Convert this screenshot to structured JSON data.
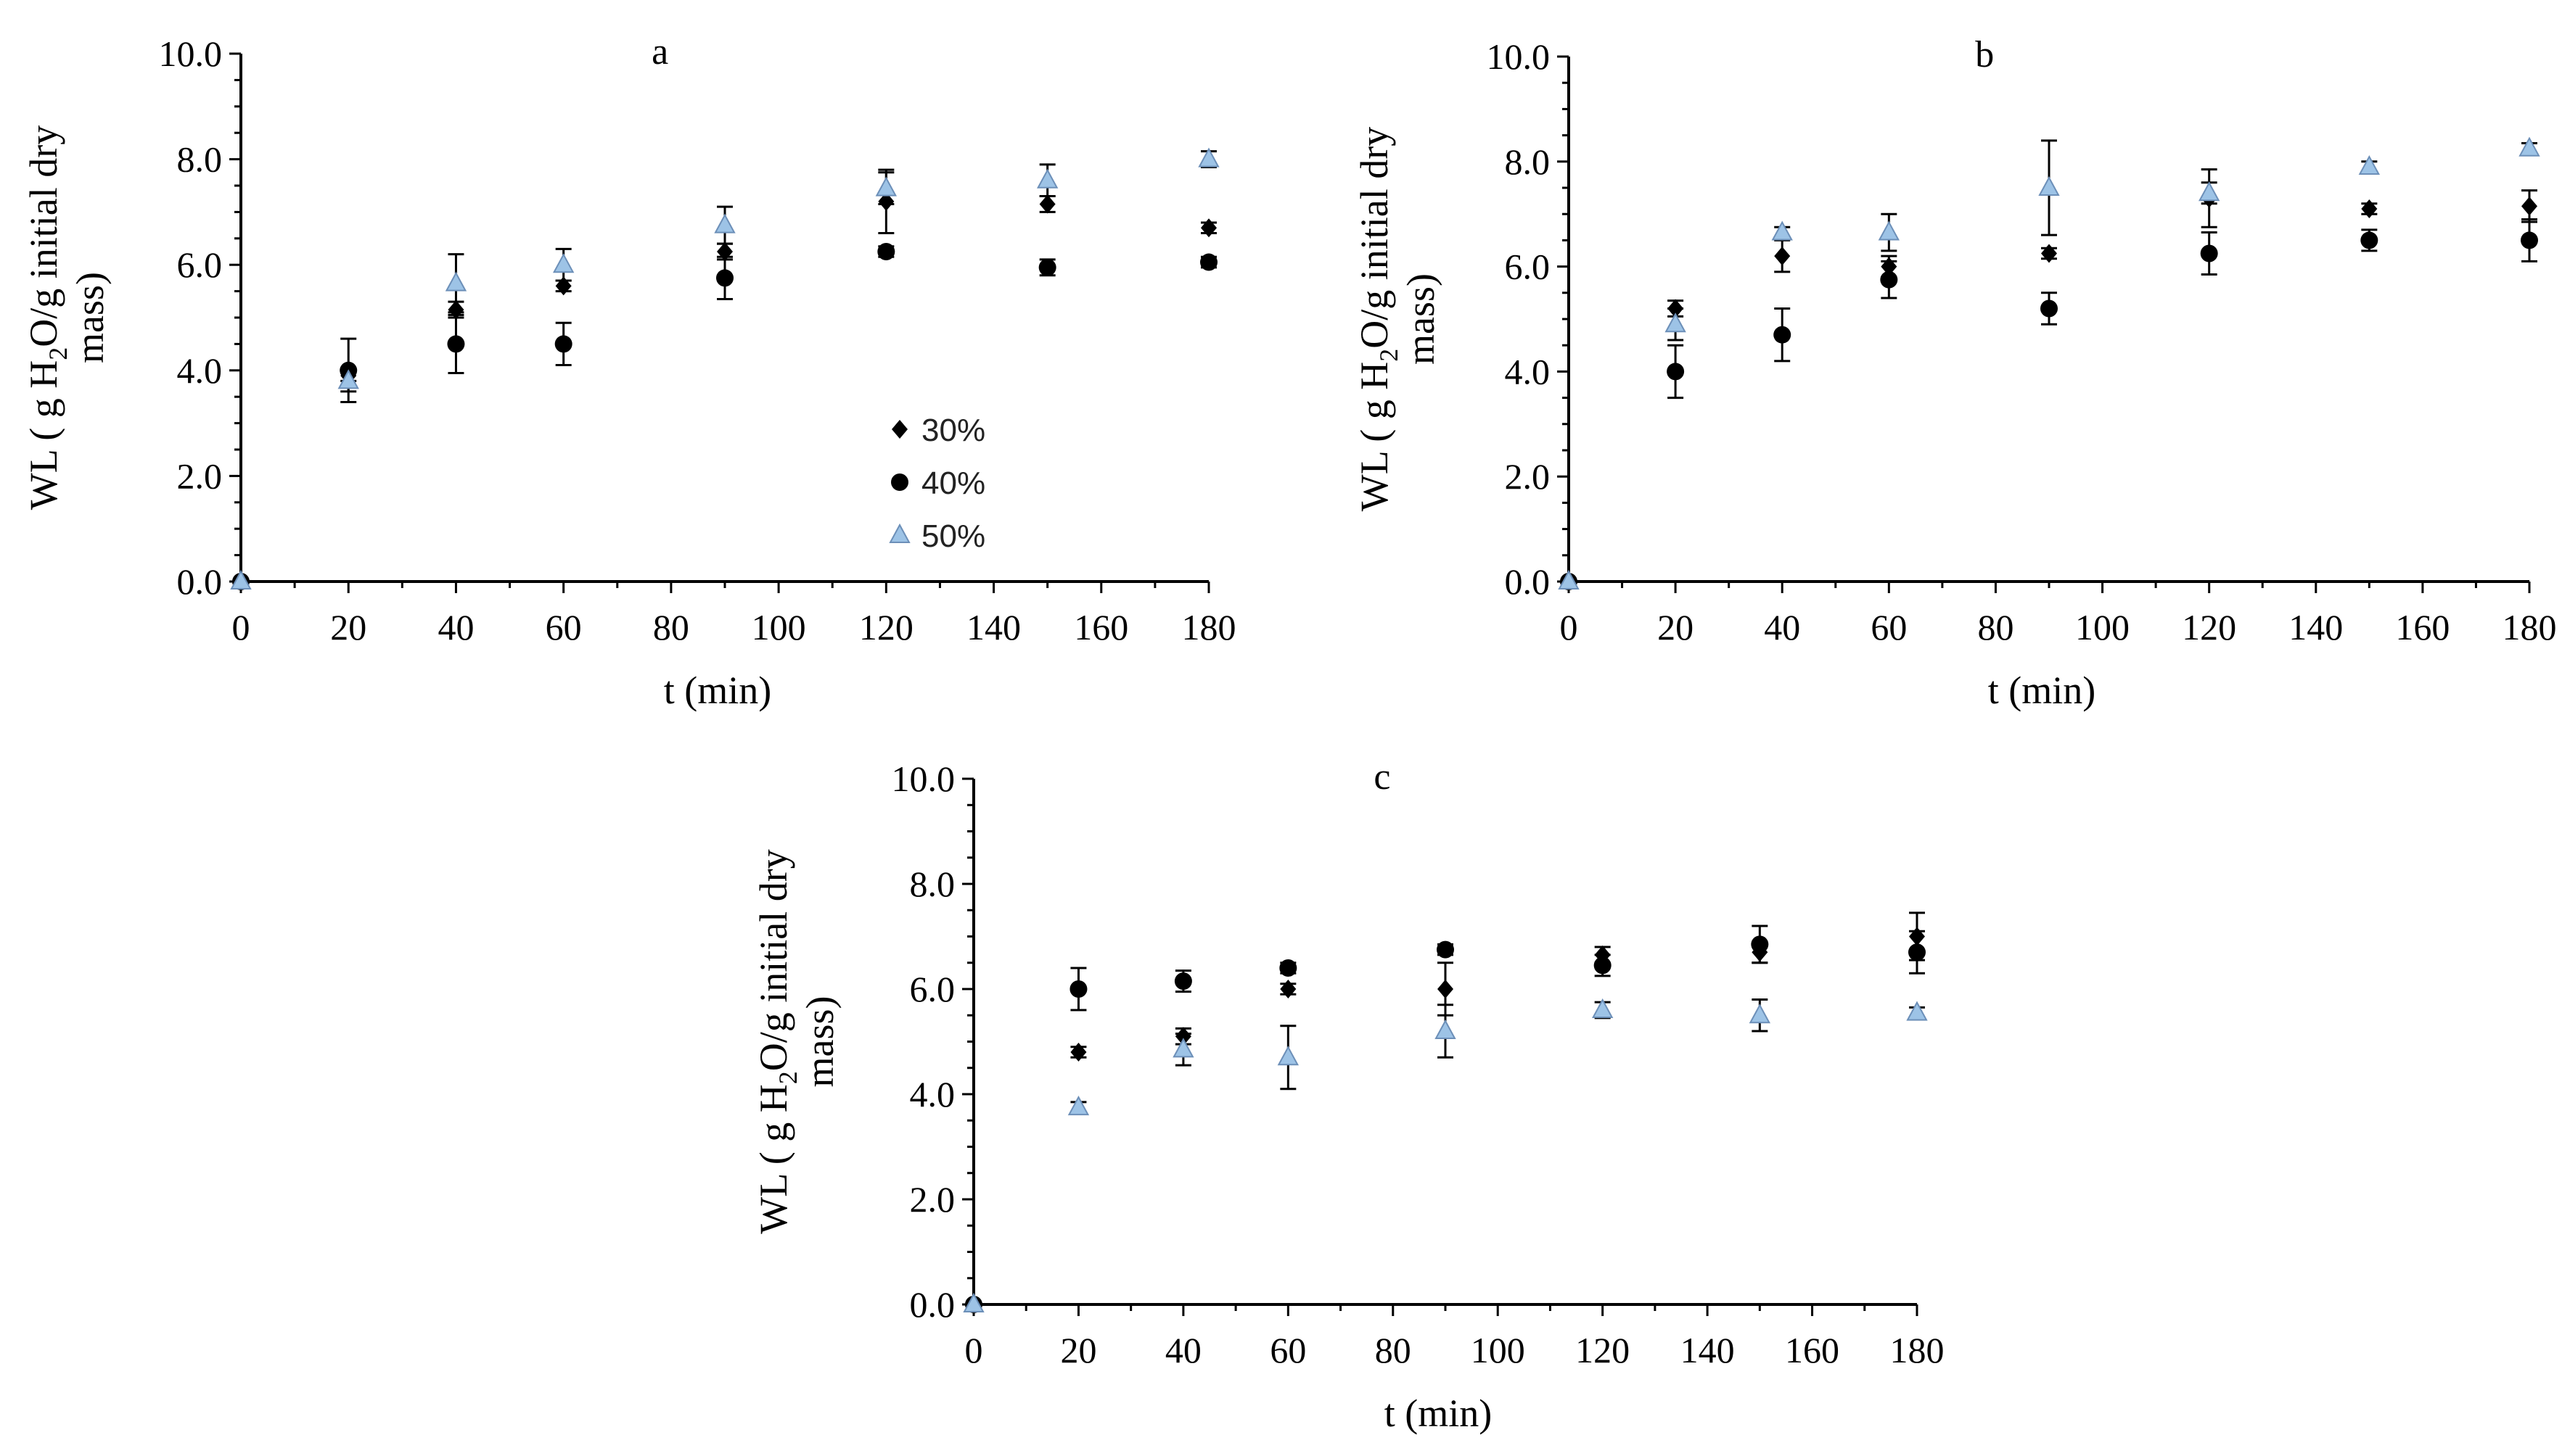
{
  "figure": {
    "xlabel": "t (min)",
    "ylabel_line1_pre": "WL ( g H",
    "ylabel_line1_sub": "2",
    "ylabel_line1_post": "O/g initial dry",
    "ylabel_line2": "mass)",
    "marker_colors": {
      "30%": "#000000",
      "40%": "#000000",
      "50%": "#9dc3e6"
    }
  },
  "legend": {
    "placement": "panel a, lower-middle",
    "items": [
      {
        "label": "30%",
        "marker": "diamond"
      },
      {
        "label": "40%",
        "marker": "circle"
      },
      {
        "label": "50%",
        "marker": "triangle"
      }
    ]
  },
  "chart_data": [
    {
      "type": "scatter",
      "title": "a",
      "xlabel": "t (min)",
      "ylabel": "WL ( g H2O/g initial dry mass)",
      "xlim": [
        0,
        180
      ],
      "ylim": [
        0,
        10
      ],
      "xticks": [
        0,
        20,
        40,
        60,
        80,
        100,
        120,
        140,
        160,
        180
      ],
      "xtick_labels": [
        "0",
        "20",
        "40",
        "60",
        "80",
        "100",
        "120",
        "140",
        "160",
        "180"
      ],
      "yticks": [
        0,
        2,
        4,
        6,
        8,
        10
      ],
      "ytick_labels": [
        "0.0",
        "2.0",
        "4.0",
        "6.0",
        "8.0",
        "10.0"
      ],
      "x": [
        0,
        20,
        40,
        60,
        90,
        120,
        150,
        180
      ],
      "series": [
        {
          "name": "30%",
          "marker": "diamond",
          "values": [
            0,
            3.9,
            5.15,
            5.6,
            6.25,
            7.2,
            7.15,
            6.7
          ],
          "errors": [
            0,
            0.1,
            0.15,
            0.1,
            0.15,
            0.6,
            0.15,
            0.1
          ]
        },
        {
          "name": "40%",
          "marker": "circle",
          "values": [
            0,
            4.0,
            4.5,
            4.5,
            5.75,
            6.25,
            5.95,
            6.05
          ],
          "errors": [
            0,
            0.6,
            0.55,
            0.4,
            0.4,
            0.1,
            0.15,
            0.1
          ]
        },
        {
          "name": "50%",
          "marker": "triangle",
          "values": [
            0,
            3.8,
            5.65,
            6.0,
            6.75,
            7.45,
            7.6,
            8.0
          ],
          "errors": [
            0,
            0.2,
            0.55,
            0.3,
            0.35,
            0.3,
            0.3,
            0.15
          ]
        }
      ]
    },
    {
      "type": "scatter",
      "title": "b",
      "xlabel": "t (min)",
      "ylabel": "WL ( g H2O/g initial dry mass)",
      "xlim": [
        0,
        180
      ],
      "ylim": [
        0,
        10
      ],
      "xticks": [
        0,
        20,
        40,
        60,
        80,
        100,
        120,
        140,
        160,
        180
      ],
      "xtick_labels": [
        "0",
        "20",
        "40",
        "60",
        "80",
        "100",
        "120",
        "140",
        "160",
        "180"
      ],
      "yticks": [
        0,
        2,
        4,
        6,
        8,
        10
      ],
      "ytick_labels": [
        "0.0",
        "2.0",
        "4.0",
        "6.0",
        "8.0",
        "10.0"
      ],
      "x": [
        0,
        20,
        40,
        60,
        90,
        120,
        150,
        180
      ],
      "series": [
        {
          "name": "30%",
          "marker": "diamond",
          "values": [
            0,
            5.2,
            6.2,
            6.0,
            6.25,
            7.3,
            7.1,
            7.15
          ],
          "errors": [
            0,
            0.15,
            0.3,
            0.2,
            0.1,
            0.55,
            0.1,
            0.3
          ]
        },
        {
          "name": "40%",
          "marker": "circle",
          "values": [
            0,
            4.0,
            4.7,
            5.75,
            5.2,
            6.25,
            6.5,
            6.5
          ],
          "errors": [
            0,
            0.5,
            0.5,
            0.35,
            0.3,
            0.4,
            0.2,
            0.4
          ]
        },
        {
          "name": "50%",
          "marker": "triangle",
          "values": [
            0,
            4.9,
            6.65,
            6.65,
            7.5,
            7.4,
            7.9,
            8.25
          ],
          "errors": [
            0,
            0.3,
            0.1,
            0.35,
            0.9,
            0.2,
            0.1,
            0.1
          ]
        }
      ]
    },
    {
      "type": "scatter",
      "title": "c",
      "xlabel": "t (min)",
      "ylabel": "WL ( g H2O/g initial dry mass)",
      "xlim": [
        0,
        180
      ],
      "ylim": [
        0,
        10
      ],
      "xticks": [
        0,
        20,
        40,
        60,
        80,
        100,
        120,
        140,
        160,
        180
      ],
      "xtick_labels": [
        "0",
        "20",
        "40",
        "60",
        "80",
        "100",
        "120",
        "140",
        "160",
        "180"
      ],
      "yticks": [
        0,
        2,
        4,
        6,
        8,
        10
      ],
      "ytick_labels": [
        "0.0",
        "2.0",
        "4.0",
        "6.0",
        "8.0",
        "10.0"
      ],
      "x": [
        0,
        20,
        40,
        60,
        90,
        120,
        150,
        180
      ],
      "series": [
        {
          "name": "30%",
          "marker": "diamond",
          "values": [
            0,
            4.8,
            5.1,
            6.0,
            6.0,
            6.65,
            6.7,
            7.0
          ],
          "errors": [
            0,
            0.1,
            0.15,
            0.1,
            0.5,
            0.15,
            0.2,
            0.45
          ]
        },
        {
          "name": "40%",
          "marker": "circle",
          "values": [
            0,
            6.0,
            6.15,
            6.4,
            6.75,
            6.45,
            6.85,
            6.7
          ],
          "errors": [
            0,
            0.4,
            0.2,
            0.1,
            0.1,
            0.2,
            0.35,
            0.4
          ]
        },
        {
          "name": "50%",
          "marker": "triangle",
          "values": [
            0,
            3.75,
            4.85,
            4.7,
            5.2,
            5.6,
            5.5,
            5.55
          ],
          "errors": [
            0,
            0.1,
            0.3,
            0.6,
            0.5,
            0.15,
            0.3,
            0.1
          ]
        }
      ]
    }
  ]
}
